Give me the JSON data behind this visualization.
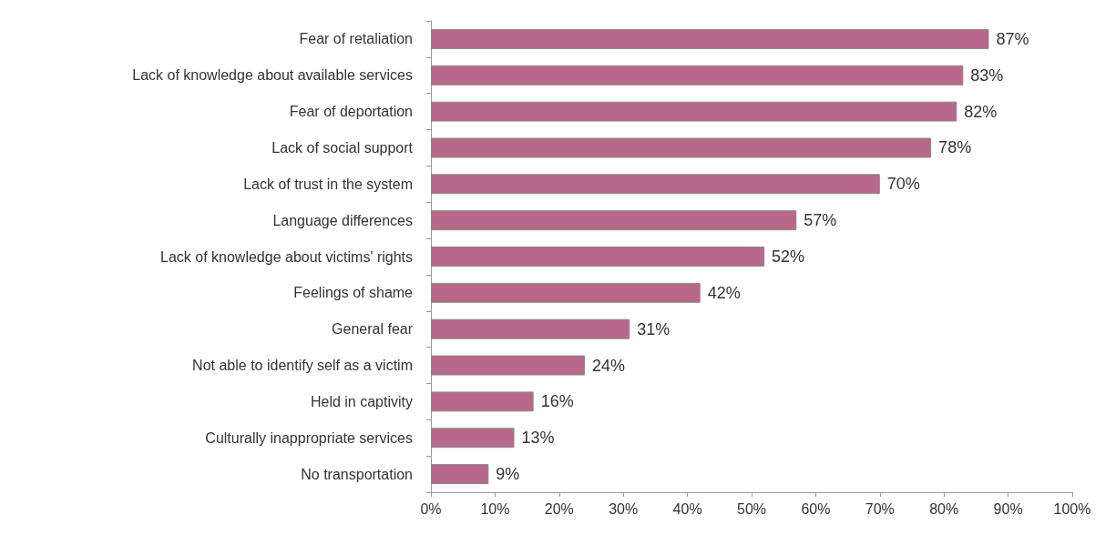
{
  "chart_data": {
    "type": "bar",
    "orientation": "horizontal",
    "categories": [
      "Fear of retaliation",
      "Lack of knowledge about available services",
      "Fear of deportation",
      "Lack of social support",
      "Lack of trust in the system",
      "Language differences",
      "Lack of knowledge about victims' rights",
      "Feelings of shame",
      "General fear",
      "Not able to identify self as a victim",
      "Held in captivity",
      "Culturally inappropriate services",
      "No transportation"
    ],
    "values": [
      87,
      83,
      82,
      78,
      70,
      57,
      52,
      42,
      31,
      24,
      16,
      13,
      9
    ],
    "value_labels": [
      "87%",
      "83%",
      "82%",
      "78%",
      "70%",
      "57%",
      "52%",
      "42%",
      "31%",
      "24%",
      "16%",
      "13%",
      "9%"
    ],
    "color": "#b8688a",
    "xlim": [
      0,
      100
    ],
    "xticks": [
      {
        "value": 0,
        "label": "0%"
      },
      {
        "value": 10,
        "label": "10%"
      },
      {
        "value": 20,
        "label": "20%"
      },
      {
        "value": 30,
        "label": "30%"
      },
      {
        "value": 40,
        "label": "40%"
      },
      {
        "value": 50,
        "label": "50%"
      },
      {
        "value": 60,
        "label": "60%"
      },
      {
        "value": 70,
        "label": "70%"
      },
      {
        "value": 80,
        "label": "80%"
      },
      {
        "value": 90,
        "label": "90%"
      },
      {
        "value": 100,
        "label": "100%"
      }
    ],
    "grid": false
  }
}
